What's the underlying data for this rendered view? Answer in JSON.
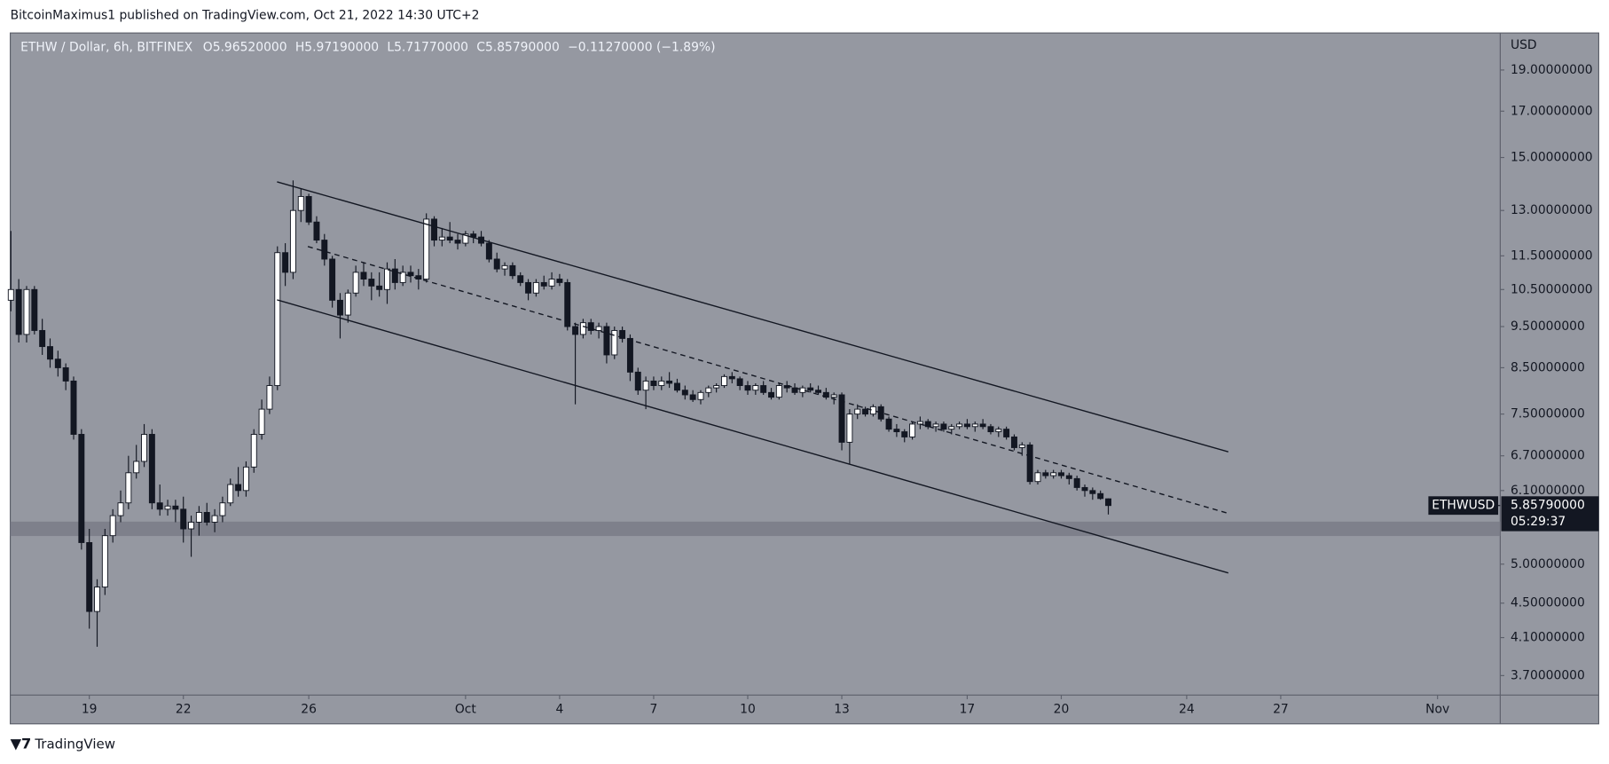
{
  "header": "BitcoinMaximus1 published on TradingView.com, Oct 21, 2022 14:30 UTC+2",
  "footer": "TradingView",
  "chart_data": {
    "type": "candlestick",
    "legend": {
      "symbol": "ETHW / Dollar, 6h, BITFINEX",
      "items": [
        {
          "key": "O",
          "value": "5.96520000"
        },
        {
          "key": "H",
          "value": "5.97190000"
        },
        {
          "key": "L",
          "value": "5.71770000"
        },
        {
          "key": "C",
          "value": "5.85790000"
        }
      ],
      "change": "−0.11270000 (−1.89%)"
    },
    "y_unit": "USD",
    "log_scale": true,
    "background": "#9598a1",
    "up_color": "#ffffff",
    "down_color": "#131722",
    "last_price": {
      "value": 5.8579,
      "label": "5.85790000",
      "symbol": "ETHWUSD",
      "countdown": "05:29:37"
    },
    "xlim": [
      "2022-09-16 11:30",
      "2022-11-03 00:00"
    ],
    "xticks": [
      {
        "value": "2022-09-19",
        "label": "19"
      },
      {
        "value": "2022-09-22",
        "label": "22"
      },
      {
        "value": "2022-09-26",
        "label": "26"
      },
      {
        "value": "2022-10-01",
        "label": "Oct"
      },
      {
        "value": "2022-10-04",
        "label": "4"
      },
      {
        "value": "2022-10-07",
        "label": "7"
      },
      {
        "value": "2022-10-10",
        "label": "10"
      },
      {
        "value": "2022-10-13",
        "label": "13"
      },
      {
        "value": "2022-10-17",
        "label": "17"
      },
      {
        "value": "2022-10-20",
        "label": "20"
      },
      {
        "value": "2022-10-24",
        "label": "24"
      },
      {
        "value": "2022-10-27",
        "label": "27"
      },
      {
        "value": "2022-11-01",
        "label": "Nov"
      }
    ],
    "ylim": [
      3.51,
      21.0
    ],
    "yticks": [
      {
        "value": 19,
        "label": "19.00000000"
      },
      {
        "value": 17,
        "label": "17.00000000"
      },
      {
        "value": 15,
        "label": "15.00000000"
      },
      {
        "value": 13,
        "label": "13.00000000"
      },
      {
        "value": 11.5,
        "label": "11.50000000"
      },
      {
        "value": 10.5,
        "label": "10.50000000"
      },
      {
        "value": 9.5,
        "label": "9.50000000"
      },
      {
        "value": 8.5,
        "label": "8.50000000"
      },
      {
        "value": 7.5,
        "label": "7.50000000"
      },
      {
        "value": 6.7,
        "label": "6.70000000"
      },
      {
        "value": 6.1,
        "label": "6.10000000"
      },
      {
        "value": 5,
        "label": "5.00000000"
      },
      {
        "value": 4.5,
        "label": "4.50000000"
      },
      {
        "value": 4.1,
        "label": "4.10000000"
      },
      {
        "value": 3.7,
        "label": "3.70000000"
      }
    ],
    "x": [
      "2022-09-16 12:00",
      "2022-09-16 18:00",
      "2022-09-17 00:00",
      "2022-09-17 06:00",
      "2022-09-17 12:00",
      "2022-09-17 18:00",
      "2022-09-18 00:00",
      "2022-09-18 06:00",
      "2022-09-18 12:00",
      "2022-09-18 18:00",
      "2022-09-19 00:00",
      "2022-09-19 06:00",
      "2022-09-19 12:00",
      "2022-09-19 18:00",
      "2022-09-20 00:00",
      "2022-09-20 06:00",
      "2022-09-20 12:00",
      "2022-09-20 18:00",
      "2022-09-21 00:00",
      "2022-09-21 06:00",
      "2022-09-21 12:00",
      "2022-09-21 18:00",
      "2022-09-22 00:00",
      "2022-09-22 06:00",
      "2022-09-22 12:00",
      "2022-09-22 18:00",
      "2022-09-23 00:00",
      "2022-09-23 06:00",
      "2022-09-23 12:00",
      "2022-09-23 18:00",
      "2022-09-24 00:00",
      "2022-09-24 06:00",
      "2022-09-24 12:00",
      "2022-09-24 18:00",
      "2022-09-25 00:00",
      "2022-09-25 06:00",
      "2022-09-25 12:00",
      "2022-09-25 18:00",
      "2022-09-26 00:00",
      "2022-09-26 06:00",
      "2022-09-26 12:00",
      "2022-09-26 18:00",
      "2022-09-27 00:00",
      "2022-09-27 06:00",
      "2022-09-27 12:00",
      "2022-09-27 18:00",
      "2022-09-28 00:00",
      "2022-09-28 06:00",
      "2022-09-28 12:00",
      "2022-09-28 18:00",
      "2022-09-29 00:00",
      "2022-09-29 06:00",
      "2022-09-29 12:00",
      "2022-09-29 18:00",
      "2022-09-30 00:00",
      "2022-09-30 06:00",
      "2022-09-30 12:00",
      "2022-09-30 18:00",
      "2022-10-01 00:00",
      "2022-10-01 06:00",
      "2022-10-01 12:00",
      "2022-10-01 18:00",
      "2022-10-02 00:00",
      "2022-10-02 06:00",
      "2022-10-02 12:00",
      "2022-10-02 18:00",
      "2022-10-03 00:00",
      "2022-10-03 06:00",
      "2022-10-03 12:00",
      "2022-10-03 18:00",
      "2022-10-04 00:00",
      "2022-10-04 06:00",
      "2022-10-04 12:00",
      "2022-10-04 18:00",
      "2022-10-05 00:00",
      "2022-10-05 06:00",
      "2022-10-05 12:00",
      "2022-10-05 18:00",
      "2022-10-06 00:00",
      "2022-10-06 06:00",
      "2022-10-06 12:00",
      "2022-10-06 18:00",
      "2022-10-07 00:00",
      "2022-10-07 06:00",
      "2022-10-07 12:00",
      "2022-10-07 18:00",
      "2022-10-08 00:00",
      "2022-10-08 06:00",
      "2022-10-08 12:00",
      "2022-10-08 18:00",
      "2022-10-09 00:00",
      "2022-10-09 06:00",
      "2022-10-09 12:00",
      "2022-10-09 18:00",
      "2022-10-10 00:00",
      "2022-10-10 06:00",
      "2022-10-10 12:00",
      "2022-10-10 18:00",
      "2022-10-11 00:00",
      "2022-10-11 06:00",
      "2022-10-11 12:00",
      "2022-10-11 18:00",
      "2022-10-12 00:00",
      "2022-10-12 06:00",
      "2022-10-12 12:00",
      "2022-10-12 18:00",
      "2022-10-13 00:00",
      "2022-10-13 06:00",
      "2022-10-13 12:00",
      "2022-10-13 18:00",
      "2022-10-14 00:00",
      "2022-10-14 06:00",
      "2022-10-14 12:00",
      "2022-10-14 18:00",
      "2022-10-15 00:00",
      "2022-10-15 06:00",
      "2022-10-15 12:00",
      "2022-10-15 18:00",
      "2022-10-16 00:00",
      "2022-10-16 06:00",
      "2022-10-16 12:00",
      "2022-10-16 18:00",
      "2022-10-17 00:00",
      "2022-10-17 06:00",
      "2022-10-17 12:00",
      "2022-10-17 18:00",
      "2022-10-18 00:00",
      "2022-10-18 06:00",
      "2022-10-18 12:00",
      "2022-10-18 18:00",
      "2022-10-19 00:00",
      "2022-10-19 06:00",
      "2022-10-19 12:00",
      "2022-10-19 18:00",
      "2022-10-20 00:00",
      "2022-10-20 06:00",
      "2022-10-20 12:00",
      "2022-10-20 18:00",
      "2022-10-21 00:00",
      "2022-10-21 06:00",
      "2022-10-21 12:00"
    ],
    "ohlc": [
      [
        10.2,
        12.3,
        9.9,
        10.5
      ],
      [
        10.5,
        10.8,
        9.1,
        9.3
      ],
      [
        9.3,
        10.6,
        9.1,
        10.5
      ],
      [
        10.5,
        10.6,
        9.3,
        9.4
      ],
      [
        9.4,
        9.7,
        8.8,
        9.0
      ],
      [
        9.0,
        9.2,
        8.5,
        8.7
      ],
      [
        8.7,
        8.9,
        8.3,
        8.5
      ],
      [
        8.5,
        8.6,
        8.0,
        8.2
      ],
      [
        8.2,
        8.3,
        7.0,
        7.1
      ],
      [
        7.1,
        7.2,
        5.2,
        5.3
      ],
      [
        5.3,
        5.5,
        4.2,
        4.4
      ],
      [
        4.4,
        4.8,
        4.0,
        4.7
      ],
      [
        4.7,
        5.5,
        4.6,
        5.4
      ],
      [
        5.4,
        5.8,
        5.3,
        5.7
      ],
      [
        5.7,
        6.1,
        5.6,
        5.9
      ],
      [
        5.9,
        6.7,
        5.8,
        6.4
      ],
      [
        6.4,
        6.9,
        6.3,
        6.6
      ],
      [
        6.6,
        7.3,
        6.5,
        7.1
      ],
      [
        7.1,
        7.2,
        5.8,
        5.9
      ],
      [
        5.9,
        6.2,
        5.7,
        5.8
      ],
      [
        5.8,
        5.95,
        5.7,
        5.85
      ],
      [
        5.85,
        5.95,
        5.6,
        5.8
      ],
      [
        5.8,
        6.0,
        5.3,
        5.5
      ],
      [
        5.5,
        5.7,
        5.1,
        5.6
      ],
      [
        5.6,
        5.85,
        5.4,
        5.75
      ],
      [
        5.75,
        5.9,
        5.55,
        5.6
      ],
      [
        5.6,
        5.8,
        5.45,
        5.7
      ],
      [
        5.7,
        6.0,
        5.6,
        5.9
      ],
      [
        5.9,
        6.3,
        5.85,
        6.2
      ],
      [
        6.2,
        6.5,
        6.0,
        6.1
      ],
      [
        6.1,
        6.6,
        6.0,
        6.5
      ],
      [
        6.5,
        7.2,
        6.4,
        7.1
      ],
      [
        7.1,
        7.8,
        7.0,
        7.6
      ],
      [
        7.6,
        8.3,
        7.5,
        8.1
      ],
      [
        8.1,
        11.8,
        8.0,
        11.6
      ],
      [
        11.6,
        11.9,
        10.6,
        11.0
      ],
      [
        11.0,
        14.1,
        10.8,
        13.0
      ],
      [
        13.0,
        13.8,
        12.6,
        13.5
      ],
      [
        13.5,
        13.6,
        12.5,
        12.6
      ],
      [
        12.6,
        12.8,
        11.9,
        12.0
      ],
      [
        12.0,
        12.2,
        11.2,
        11.4
      ],
      [
        11.4,
        11.5,
        10.0,
        10.2
      ],
      [
        10.2,
        10.4,
        9.2,
        9.8
      ],
      [
        9.8,
        10.5,
        9.6,
        10.4
      ],
      [
        10.4,
        11.2,
        10.3,
        11.0
      ],
      [
        11.0,
        11.3,
        10.6,
        10.8
      ],
      [
        10.8,
        11.0,
        10.2,
        10.6
      ],
      [
        10.6,
        11.0,
        10.3,
        10.5
      ],
      [
        10.5,
        11.3,
        10.1,
        11.1
      ],
      [
        11.1,
        11.4,
        10.5,
        10.7
      ],
      [
        10.7,
        11.2,
        10.6,
        11.0
      ],
      [
        11.0,
        11.2,
        10.7,
        10.9
      ],
      [
        10.9,
        11.1,
        10.5,
        10.8
      ],
      [
        10.8,
        12.9,
        10.7,
        12.7
      ],
      [
        12.7,
        12.8,
        11.8,
        12.0
      ],
      [
        12.0,
        12.4,
        11.8,
        12.1
      ],
      [
        12.1,
        12.6,
        11.9,
        12.0
      ],
      [
        12.0,
        12.2,
        11.7,
        11.9
      ],
      [
        11.9,
        12.3,
        11.8,
        12.2
      ],
      [
        12.2,
        12.3,
        11.9,
        12.1
      ],
      [
        12.1,
        12.3,
        11.8,
        11.9
      ],
      [
        11.9,
        12.0,
        11.3,
        11.4
      ],
      [
        11.4,
        11.6,
        11.0,
        11.1
      ],
      [
        11.1,
        11.3,
        10.9,
        11.2
      ],
      [
        11.2,
        11.3,
        10.8,
        10.9
      ],
      [
        10.9,
        11.0,
        10.6,
        10.7
      ],
      [
        10.7,
        10.8,
        10.2,
        10.4
      ],
      [
        10.4,
        10.8,
        10.3,
        10.7
      ],
      [
        10.7,
        10.9,
        10.5,
        10.6
      ],
      [
        10.6,
        11.0,
        10.5,
        10.8
      ],
      [
        10.8,
        10.95,
        10.6,
        10.7
      ],
      [
        10.7,
        10.8,
        9.4,
        9.5
      ],
      [
        9.5,
        9.6,
        7.7,
        9.3
      ],
      [
        9.3,
        9.7,
        9.2,
        9.6
      ],
      [
        9.6,
        9.7,
        9.3,
        9.4
      ],
      [
        9.4,
        9.6,
        9.2,
        9.5
      ],
      [
        9.5,
        9.6,
        8.6,
        8.8
      ],
      [
        8.8,
        9.5,
        8.7,
        9.4
      ],
      [
        9.4,
        9.5,
        9.1,
        9.2
      ],
      [
        9.2,
        9.3,
        8.2,
        8.4
      ],
      [
        8.4,
        8.5,
        7.9,
        8.0
      ],
      [
        8.0,
        8.3,
        7.6,
        8.2
      ],
      [
        8.2,
        8.3,
        8.0,
        8.1
      ],
      [
        8.1,
        8.3,
        8.0,
        8.2
      ],
      [
        8.2,
        8.4,
        8.05,
        8.15
      ],
      [
        8.15,
        8.25,
        7.95,
        8.0
      ],
      [
        8.0,
        8.1,
        7.8,
        7.9
      ],
      [
        7.9,
        8.0,
        7.75,
        7.8
      ],
      [
        7.8,
        8.0,
        7.7,
        7.95
      ],
      [
        7.95,
        8.1,
        7.85,
        8.05
      ],
      [
        8.05,
        8.15,
        7.95,
        8.1
      ],
      [
        8.1,
        8.35,
        8.05,
        8.3
      ],
      [
        8.3,
        8.4,
        8.15,
        8.25
      ],
      [
        8.25,
        8.3,
        8.0,
        8.1
      ],
      [
        8.1,
        8.2,
        7.9,
        8.0
      ],
      [
        8.0,
        8.15,
        7.9,
        8.1
      ],
      [
        8.1,
        8.2,
        7.9,
        7.95
      ],
      [
        7.95,
        8.05,
        7.8,
        7.85
      ],
      [
        7.85,
        8.15,
        7.8,
        8.1
      ],
      [
        8.1,
        8.2,
        7.95,
        8.05
      ],
      [
        8.05,
        8.15,
        7.9,
        7.95
      ],
      [
        7.95,
        8.1,
        7.85,
        8.05
      ],
      [
        8.05,
        8.15,
        7.95,
        8.0
      ],
      [
        8.0,
        8.1,
        7.9,
        7.95
      ],
      [
        7.95,
        8.05,
        7.8,
        7.85
      ],
      [
        7.85,
        7.95,
        7.7,
        7.9
      ],
      [
        7.9,
        7.95,
        6.8,
        6.95
      ],
      [
        6.95,
        7.6,
        6.55,
        7.5
      ],
      [
        7.5,
        7.7,
        7.4,
        7.6
      ],
      [
        7.6,
        7.65,
        7.45,
        7.5
      ],
      [
        7.5,
        7.7,
        7.45,
        7.65
      ],
      [
        7.65,
        7.7,
        7.35,
        7.4
      ],
      [
        7.4,
        7.45,
        7.15,
        7.2
      ],
      [
        7.2,
        7.3,
        7.05,
        7.15
      ],
      [
        7.15,
        7.2,
        6.95,
        7.05
      ],
      [
        7.05,
        7.35,
        7.0,
        7.3
      ],
      [
        7.3,
        7.45,
        7.2,
        7.35
      ],
      [
        7.35,
        7.4,
        7.2,
        7.25
      ],
      [
        7.25,
        7.35,
        7.15,
        7.3
      ],
      [
        7.3,
        7.35,
        7.15,
        7.2
      ],
      [
        7.2,
        7.3,
        7.1,
        7.25
      ],
      [
        7.25,
        7.35,
        7.2,
        7.3
      ],
      [
        7.3,
        7.4,
        7.2,
        7.25
      ],
      [
        7.25,
        7.35,
        7.15,
        7.3
      ],
      [
        7.3,
        7.4,
        7.2,
        7.25
      ],
      [
        7.25,
        7.3,
        7.1,
        7.15
      ],
      [
        7.15,
        7.25,
        7.05,
        7.2
      ],
      [
        7.2,
        7.25,
        7.0,
        7.05
      ],
      [
        7.05,
        7.1,
        6.8,
        6.85
      ],
      [
        6.85,
        6.95,
        6.7,
        6.9
      ],
      [
        6.9,
        6.95,
        6.2,
        6.25
      ],
      [
        6.25,
        6.45,
        6.2,
        6.4
      ],
      [
        6.4,
        6.45,
        6.3,
        6.35
      ],
      [
        6.35,
        6.45,
        6.3,
        6.4
      ],
      [
        6.4,
        6.45,
        6.3,
        6.35
      ],
      [
        6.35,
        6.4,
        6.2,
        6.3
      ],
      [
        6.3,
        6.35,
        6.1,
        6.15
      ],
      [
        6.15,
        6.2,
        6.0,
        6.1
      ],
      [
        6.1,
        6.15,
        5.95,
        6.05
      ],
      [
        6.05,
        6.1,
        5.95,
        5.97
      ],
      [
        5.9652,
        5.9719,
        5.7177,
        5.8579
      ]
    ]
  }
}
